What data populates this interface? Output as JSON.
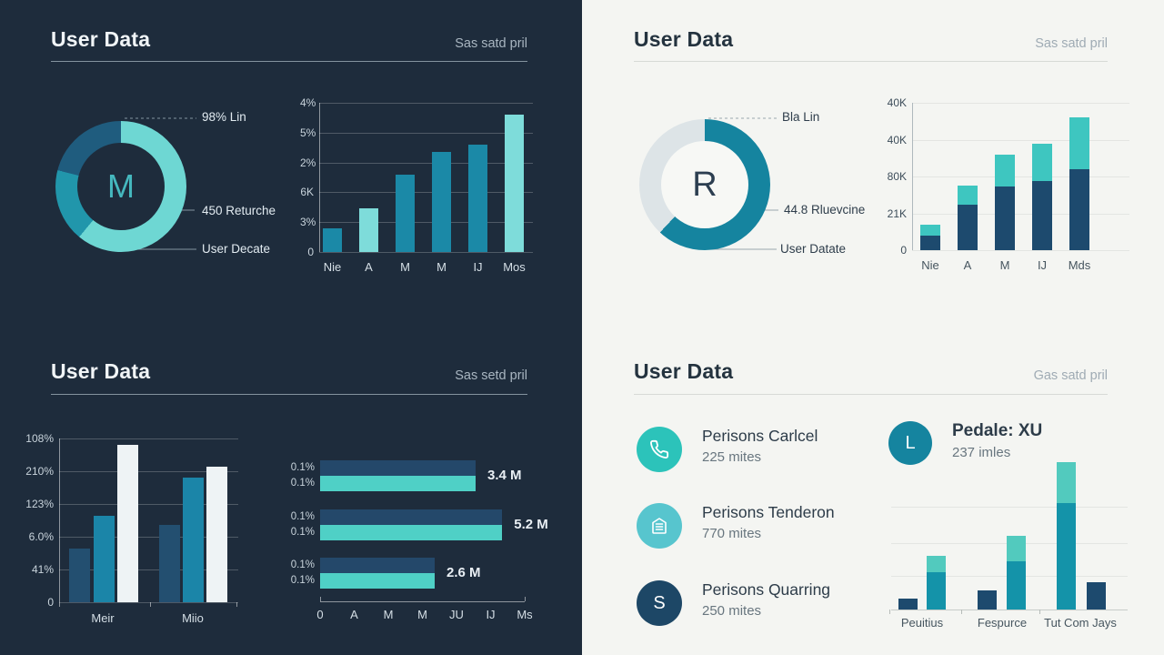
{
  "colors": {
    "left_panel_bg": "#1e2c3c",
    "right_panel_bg": "#f4f5f2",
    "teal_light": "#6ed7d3",
    "teal_medium": "#1b89a7",
    "navy": "#1d4a6e"
  },
  "panels": {
    "top_left": {
      "title": "User Data",
      "subtitle": "Sas satd pril"
    },
    "top_right": {
      "title": "User Data",
      "subtitle": "Sas satd pril"
    },
    "bottom_left": {
      "title": "User Data",
      "subtitle": "Sas setd pril"
    },
    "bottom_right": {
      "title": "User Data",
      "subtitle": "Gas satd pril"
    }
  },
  "lists": {
    "feature": {
      "icon_letter": "L",
      "icon_color": "#15849f",
      "title": "Pedale: XU",
      "subtitle": "237 imles"
    },
    "items": [
      {
        "icon": "phone-icon",
        "icon_color": "#2cc3ba",
        "title": "Perisons Carlcel",
        "subtitle": "225 mites"
      },
      {
        "icon": "mail-icon",
        "icon_color": "#57c5ce",
        "title": "Perisons Tenderon",
        "subtitle": "770 mites"
      },
      {
        "icon_letter": "S",
        "icon_color": "#1d4766",
        "title": "Perisons Quarring",
        "subtitle": "250 mites"
      }
    ]
  },
  "chart_data": [
    {
      "id": "tl-donut",
      "type": "pie",
      "center_label": "M",
      "segments": [
        {
          "label": "98% Lin",
          "value": 61,
          "color": "#6ed7d3"
        },
        {
          "label": "450 Returche",
          "value": 18,
          "color": "#2196ab"
        },
        {
          "label": "User Decate",
          "value": 21,
          "color": "#1f5c7e"
        }
      ],
      "annotations": [
        "98% Lin",
        "450 Returche",
        "User Decate"
      ]
    },
    {
      "id": "tl-bars",
      "type": "bar",
      "categories": [
        "Nie",
        "A",
        "M",
        "M",
        "IJ",
        "Mos"
      ],
      "values": [
        16,
        29,
        52,
        67,
        72,
        92
      ],
      "bar_colors": [
        "#1b89a7",
        "#7edcda",
        "#1b89a7",
        "#1b89a7",
        "#1b89a7",
        "#7edcda"
      ],
      "yticks": [
        "4%",
        "5%",
        "2%",
        "6K",
        "3%",
        "0"
      ],
      "ylim": [
        0,
        100
      ]
    },
    {
      "id": "tr-donut",
      "type": "pie",
      "center_label": "R",
      "segments": [
        {
          "label": "Bla Lin",
          "value": 62,
          "color": "#15849f"
        },
        {
          "label": "",
          "value": 38,
          "color": "#dde4e7"
        }
      ],
      "annotations": [
        "Bla Lin",
        "44.8 Rluevcine",
        "User Datate"
      ]
    },
    {
      "id": "tr-stack",
      "type": "stacked-bar",
      "categories": [
        "Nie",
        "A",
        "M",
        "IJ",
        "Mds"
      ],
      "series": [
        {
          "name": "base",
          "color": "#1d4a6e",
          "values": [
            10,
            31,
            43,
            47,
            55
          ]
        },
        {
          "name": "top",
          "color": "#3ec6c0",
          "values": [
            7,
            13,
            22,
            25,
            35
          ]
        }
      ],
      "yticks": [
        "40K",
        "40K",
        "80K",
        "21K",
        "0"
      ],
      "ylim": [
        0,
        100
      ]
    },
    {
      "id": "bl-group",
      "type": "grouped-bar",
      "categories": [
        "Meir",
        "Miio"
      ],
      "series": [
        {
          "name": "s1",
          "color": "#234f70",
          "values": [
            33,
            47
          ]
        },
        {
          "name": "s2",
          "color": "#1b85a8",
          "values": [
            53,
            76
          ]
        },
        {
          "name": "s3",
          "color": "#eef3f5",
          "values": [
            96,
            83
          ]
        }
      ],
      "yticks": [
        "108%",
        "210%",
        "123%",
        "6.0%",
        "41%",
        "0"
      ],
      "ylim": [
        0,
        100
      ]
    },
    {
      "id": "bl-hbars",
      "type": "h-bar",
      "rows": [
        {
          "tick_labels": [
            "0.1%",
            "0.1%"
          ],
          "value_label": "3.4 M",
          "length": 76
        },
        {
          "tick_labels": [
            "0.1%",
            "0.1%"
          ],
          "value_label": "5.2 M",
          "length": 89
        },
        {
          "tick_labels": [
            "0.1%",
            "0.1%"
          ],
          "value_label": "2.6 M",
          "length": 56
        }
      ],
      "bar_colors": [
        "#24486a",
        "#4fd0c6"
      ],
      "xticks": [
        "0",
        "A",
        "M",
        "M",
        "JU",
        "IJ",
        "Ms"
      ]
    },
    {
      "id": "br-stack",
      "type": "pair-stacked-bar",
      "categories": [
        "Peuitius",
        "Fespurce",
        "Tut Com Jays"
      ],
      "pairs": [
        {
          "navy": 7,
          "teal": 25,
          "light": 11
        },
        {
          "navy": 13,
          "teal": 32,
          "light": 17
        },
        {
          "navy": 18,
          "teal": 71,
          "light": 27
        }
      ],
      "colors": {
        "navy": "#1d4a6e",
        "teal": "#1493a9",
        "light": "#52cabe"
      }
    }
  ]
}
